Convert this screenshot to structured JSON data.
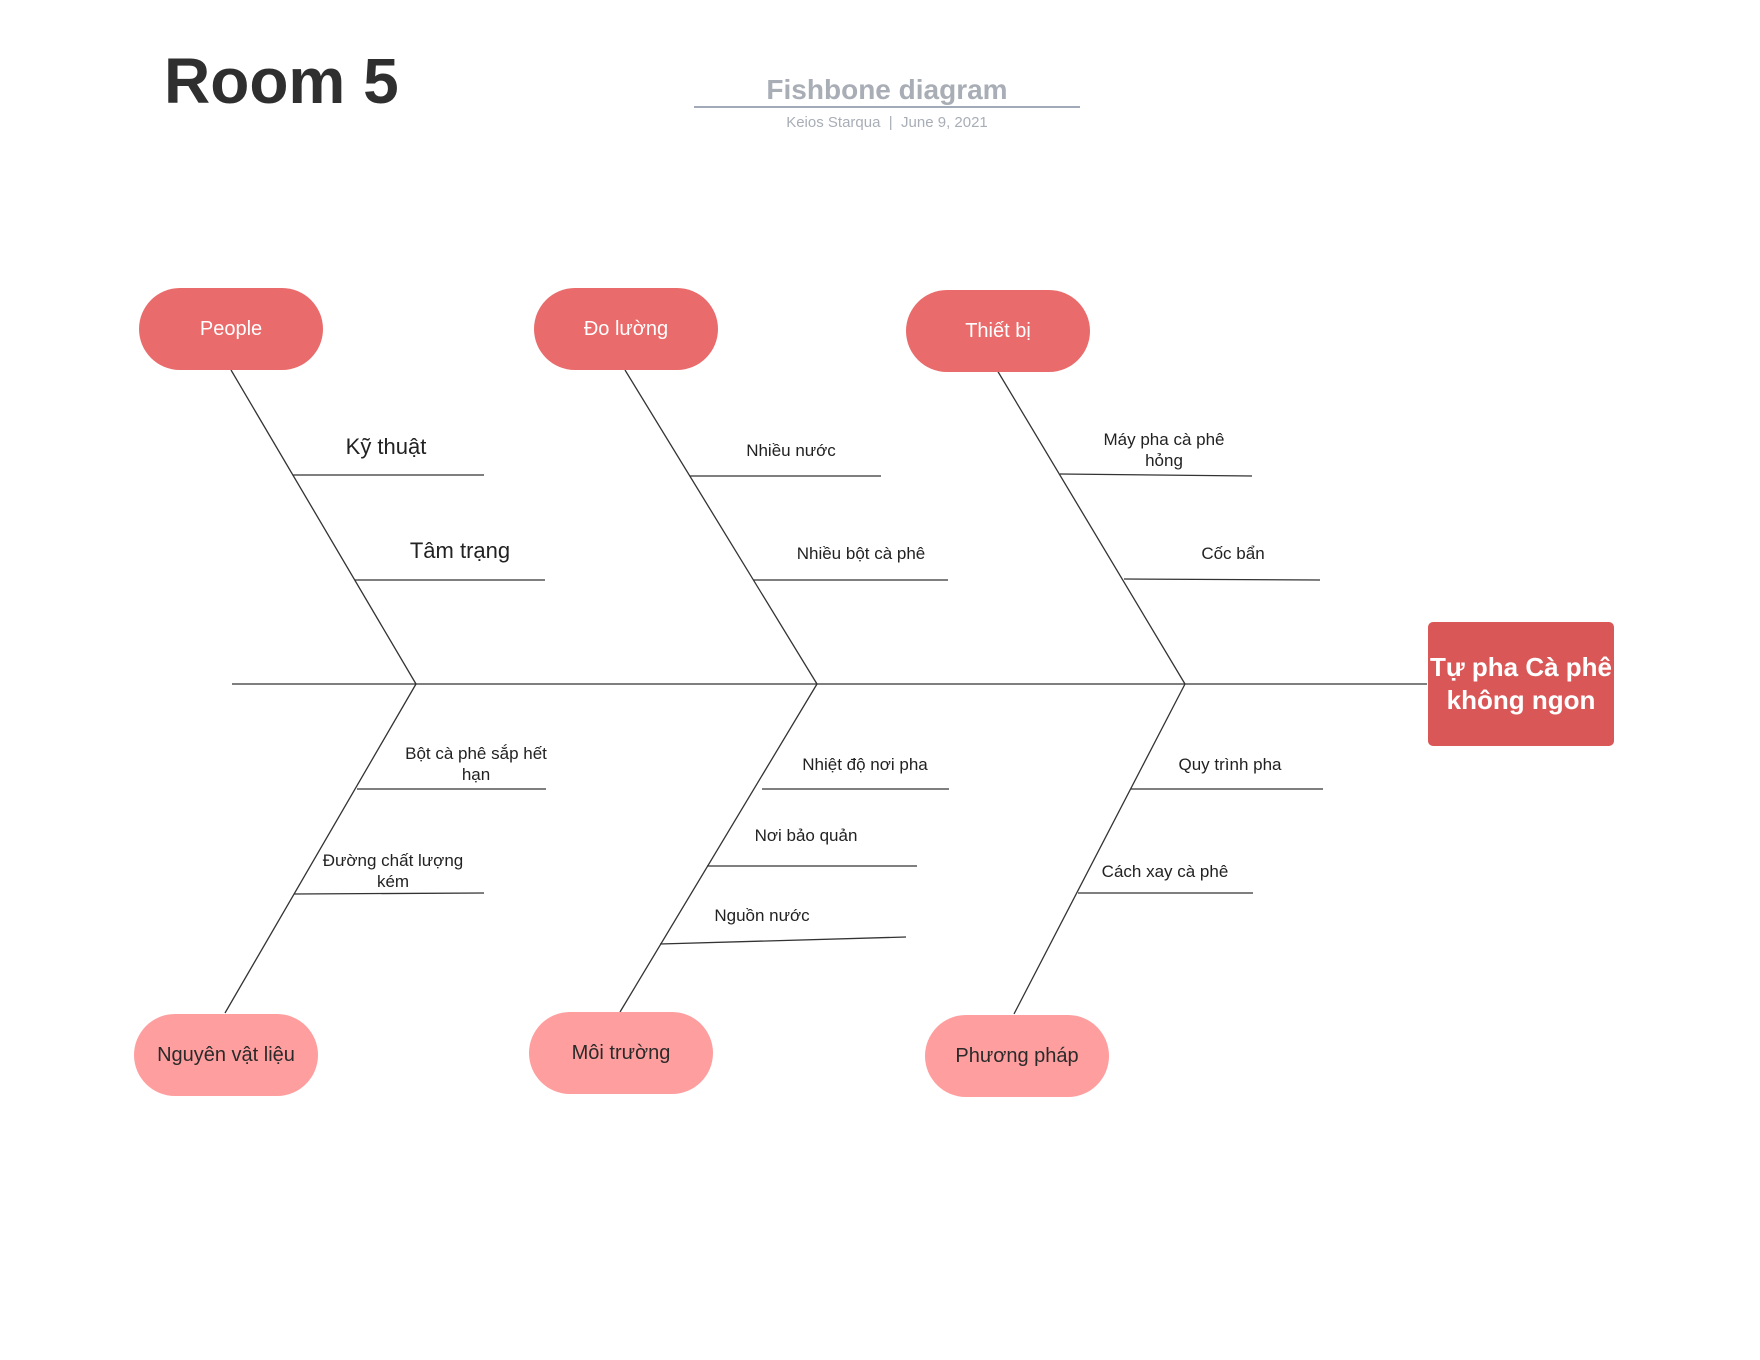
{
  "header": {
    "title": "Room 5",
    "doc_title": "Fishbone diagram",
    "author": "Keios Starqua",
    "separator": "|",
    "date": "June 9, 2021"
  },
  "effect": "Tự pha Cà phê không ngon",
  "categories": {
    "top": [
      {
        "label": "People",
        "causes": [
          "Kỹ thuật",
          "Tâm trạng"
        ]
      },
      {
        "label": "Đo lường",
        "causes": [
          "Nhiều nước",
          "Nhiều bột cà phê"
        ]
      },
      {
        "label": "Thiết bị",
        "causes": [
          "Máy pha cà phê hỏng",
          "Cốc bẩn"
        ]
      }
    ],
    "bottom": [
      {
        "label": "Nguyên vật liệu",
        "causes": [
          "Bột cà phê sắp hết hạn",
          "Đường chất lượng kém"
        ]
      },
      {
        "label": "Môi trường",
        "causes": [
          "Nhiệt độ nơi pha",
          "Nơi bảo quản",
          "Nguồn nước"
        ]
      },
      {
        "label": "Phương pháp",
        "causes": [
          "Quy trình pha",
          "Cách xay cà phê"
        ]
      }
    ]
  },
  "colors": {
    "top_category": "#ea6b6b",
    "bottom_category": "#ff9e9e",
    "effect_box": "#d95757",
    "line": "#333333"
  }
}
